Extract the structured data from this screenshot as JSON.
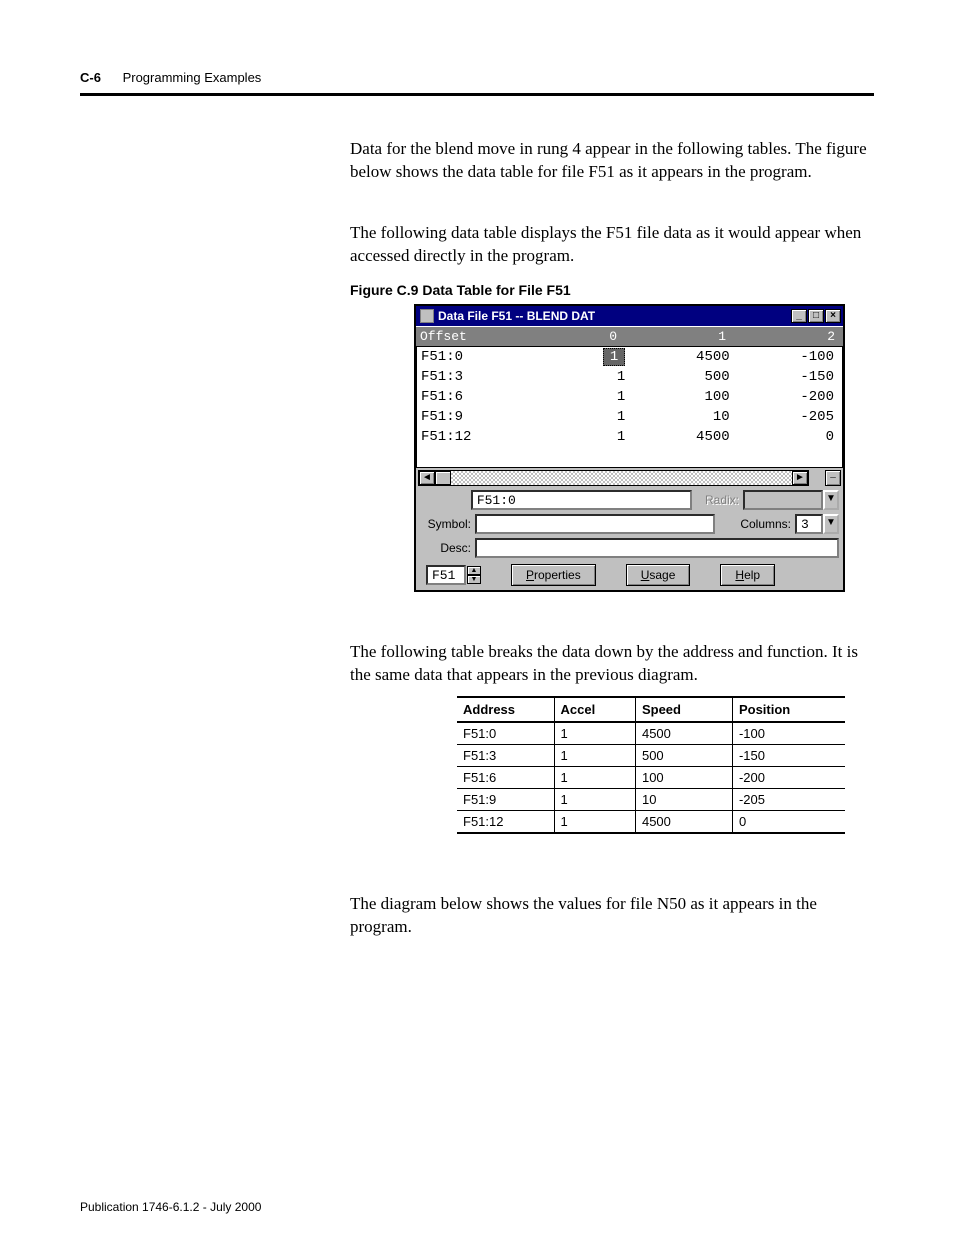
{
  "page": {
    "number": "C-6",
    "section": "Programming Examples",
    "publication": "Publication 1746-6.1.2 - July 2000"
  },
  "para1": "Data for the blend move in rung 4 appear in the following tables. The figure below shows the data table for file F51 as it appears in the program.",
  "para2": "The following data table displays the F51 file data as it would appear when accessed directly in the program.",
  "figcaption": "Figure C.9 Data Table for File F51",
  "para3": "The following table breaks the data down by the address and function.  It is the same data that appears in the previous diagram.",
  "para4": "The diagram below shows the values for file N50 as it appears in the program.",
  "window": {
    "title": "Data File F51  --  BLEND DAT",
    "columns_header": [
      "Offset",
      "0",
      "1",
      "2"
    ],
    "rows": [
      {
        "offset": "F51:0",
        "v": [
          "1",
          "4500",
          "-100"
        ],
        "selected0": true
      },
      {
        "offset": "F51:3",
        "v": [
          "1",
          "500",
          "-150"
        ]
      },
      {
        "offset": "F51:6",
        "v": [
          "1",
          "100",
          "-200"
        ]
      },
      {
        "offset": "F51:9",
        "v": [
          "1",
          "10",
          "-205"
        ]
      },
      {
        "offset": "F51:12",
        "v": [
          "1",
          "4500",
          "0"
        ]
      }
    ],
    "address_field": "F51:0",
    "radix_label": "Radix:",
    "symbol_label": "Symbol:",
    "symbol_value": "",
    "columns_label": "Columns:",
    "columns_value": "3",
    "desc_label": "Desc:",
    "desc_value": "",
    "file_spinner": "F51",
    "properties_btn": "Properties",
    "usage_btn": "Usage",
    "help_btn": "Help"
  },
  "dtable": {
    "headers": [
      "Address",
      "Accel",
      "Speed",
      "Position"
    ],
    "rows": [
      [
        "F51:0",
        "1",
        "4500",
        "-100"
      ],
      [
        "F51:3",
        "1",
        "500",
        "-150"
      ],
      [
        "F51:6",
        "1",
        "100",
        "-200"
      ],
      [
        "F51:9",
        "1",
        "10",
        "-205"
      ],
      [
        "F51:12",
        "1",
        "4500",
        "0"
      ]
    ],
    "colwidths": [
      "25%",
      "21%",
      "25%",
      "29%"
    ]
  }
}
